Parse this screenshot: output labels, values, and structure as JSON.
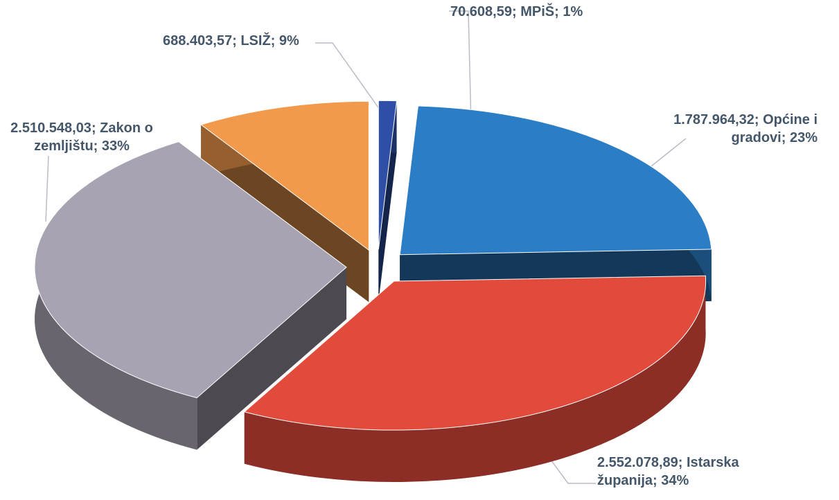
{
  "chart_data": {
    "type": "pie3d",
    "categories": [
      "MPiŠ",
      "Općine i gradovi",
      "Istarska županija",
      "Zakon o zemljištu",
      "LSIŽ"
    ],
    "values": [
      70608.59,
      1787964.32,
      2552078.89,
      2510548.03,
      688403.57
    ],
    "value_labels": [
      "70.608,59",
      "1.787.964,32",
      "2.552.078,89",
      "2.510.548,03",
      "688.403,57"
    ],
    "percent_labels": [
      "1%",
      "23%",
      "34%",
      "33%",
      "9%"
    ],
    "label_separator": "; ",
    "colors": [
      "#2f4fa6",
      "#2b7dc6",
      "#e24a3c",
      "#a8a3b3",
      "#f19a4b"
    ]
  }
}
